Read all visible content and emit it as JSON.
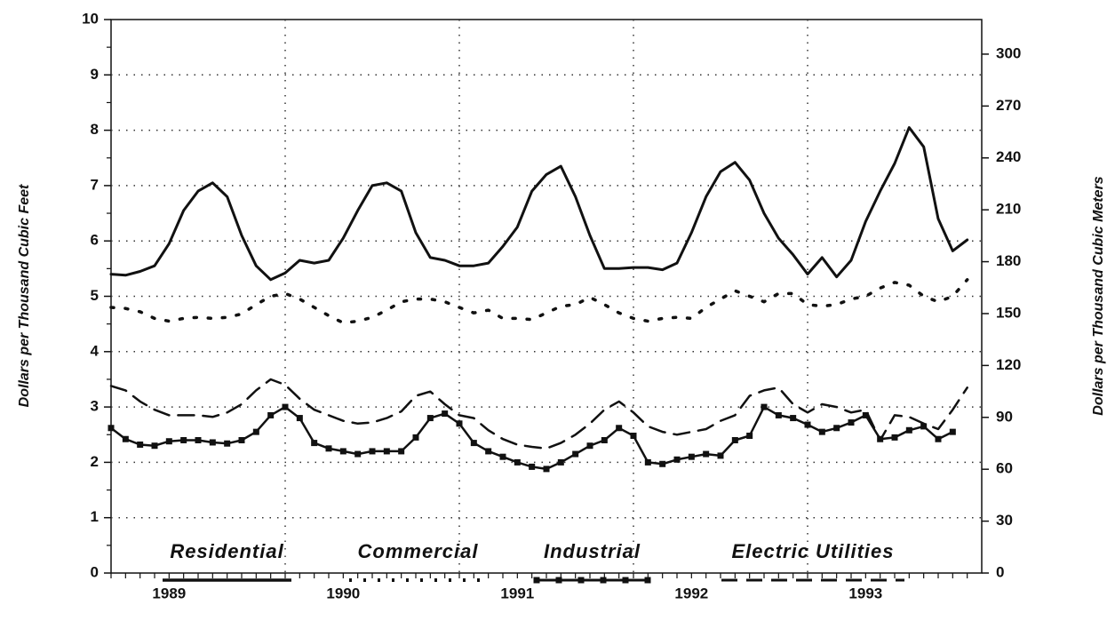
{
  "chart_data": {
    "type": "line",
    "y_label": "Dollars per Thousand Cubic Feet",
    "y2_label": "Dollars per Thousand Cubic Meters",
    "categories": [
      null,
      null,
      null,
      null,
      "1989",
      null,
      null,
      null,
      null,
      null,
      null,
      null,
      null,
      null,
      null,
      null,
      "1990",
      null,
      null,
      null,
      null,
      null,
      null,
      null,
      null,
      null,
      null,
      null,
      "1991",
      null,
      null,
      null,
      null,
      null,
      null,
      null,
      null,
      null,
      null,
      null,
      "1992",
      null,
      null,
      null,
      null,
      null,
      null,
      null,
      null,
      null,
      null,
      null,
      "1993",
      null,
      null,
      null,
      null,
      null,
      null,
      null
    ],
    "ylim": [
      0,
      10
    ],
    "yticks": [
      0,
      1,
      2,
      3,
      4,
      5,
      6,
      7,
      8,
      9,
      10
    ],
    "y2lim": [
      0,
      320
    ],
    "y2ticks": [
      0,
      30,
      60,
      90,
      120,
      150,
      180,
      210,
      240,
      270,
      300
    ],
    "grid": true,
    "series": [
      {
        "name": "Residential",
        "color": "#111111",
        "style": "solid",
        "values": [
          5.4,
          5.38,
          5.45,
          5.55,
          5.95,
          6.55,
          6.9,
          7.05,
          6.8,
          6.1,
          5.55,
          5.3,
          5.42,
          5.65,
          5.6,
          5.65,
          6.05,
          6.55,
          7.0,
          7.05,
          6.9,
          6.15,
          5.7,
          5.65,
          5.55,
          5.55,
          5.6,
          5.9,
          6.25,
          6.9,
          7.2,
          7.35,
          6.8,
          6.1,
          5.5,
          5.5,
          5.52,
          5.52,
          5.48,
          5.6,
          6.15,
          6.8,
          7.25,
          7.42,
          7.1,
          6.5,
          6.05,
          5.75,
          5.4,
          5.7,
          5.35,
          5.65,
          6.35,
          6.9,
          7.4,
          8.05,
          7.7,
          6.4,
          5.82,
          6.02
        ]
      },
      {
        "name": "Commercial",
        "color": "#111111",
        "style": "dotted",
        "values": [
          4.8,
          4.78,
          4.72,
          4.6,
          4.55,
          4.6,
          4.62,
          4.6,
          4.62,
          4.68,
          4.85,
          5.0,
          5.05,
          4.95,
          4.8,
          4.65,
          4.52,
          4.55,
          4.62,
          4.75,
          4.9,
          4.95,
          4.95,
          4.9,
          4.8,
          4.7,
          4.75,
          4.6,
          4.6,
          4.58,
          4.7,
          4.82,
          4.85,
          4.98,
          4.85,
          4.7,
          4.6,
          4.55,
          4.6,
          4.62,
          4.6,
          4.8,
          4.95,
          5.1,
          5.0,
          4.9,
          5.05,
          5.05,
          4.85,
          4.82,
          4.85,
          4.95,
          5.0,
          5.15,
          5.25,
          5.2,
          5.0,
          4.9,
          5.0,
          5.3
        ]
      },
      {
        "name": "Industrial",
        "color": "#111111",
        "style": "square",
        "values": [
          2.62,
          2.42,
          2.32,
          2.3,
          2.38,
          2.4,
          2.4,
          2.36,
          2.34,
          2.4,
          2.55,
          2.85,
          3.0,
          2.8,
          2.35,
          2.25,
          2.2,
          2.15,
          2.2,
          2.2,
          2.2,
          2.45,
          2.8,
          2.88,
          2.7,
          2.35,
          2.2,
          2.1,
          2.0,
          1.92,
          1.88,
          2.0,
          2.15,
          2.3,
          2.4,
          2.62,
          2.48,
          2.0,
          1.97,
          2.05,
          2.1,
          2.15,
          2.12,
          2.4,
          2.48,
          3.0,
          2.85,
          2.8,
          2.68,
          2.55,
          2.62,
          2.72,
          2.85,
          2.42,
          2.45,
          2.58,
          2.65,
          2.42,
          2.55,
          null
        ]
      },
      {
        "name": "Electric Utilities",
        "color": "#111111",
        "style": "dashed",
        "values": [
          3.38,
          3.3,
          3.1,
          2.95,
          2.85,
          2.85,
          2.85,
          2.82,
          2.9,
          3.05,
          3.3,
          3.5,
          3.4,
          3.15,
          2.95,
          2.85,
          2.75,
          2.7,
          2.72,
          2.8,
          2.92,
          3.2,
          3.28,
          3.05,
          2.85,
          2.8,
          2.58,
          2.42,
          2.32,
          2.28,
          2.25,
          2.35,
          2.5,
          2.7,
          2.95,
          3.1,
          2.9,
          2.65,
          2.55,
          2.5,
          2.55,
          2.6,
          2.75,
          2.85,
          3.2,
          3.3,
          3.35,
          3.05,
          2.9,
          3.05,
          3.0,
          2.9,
          2.95,
          2.4,
          2.85,
          2.82,
          2.7,
          2.6,
          2.95,
          3.35
        ]
      }
    ]
  }
}
